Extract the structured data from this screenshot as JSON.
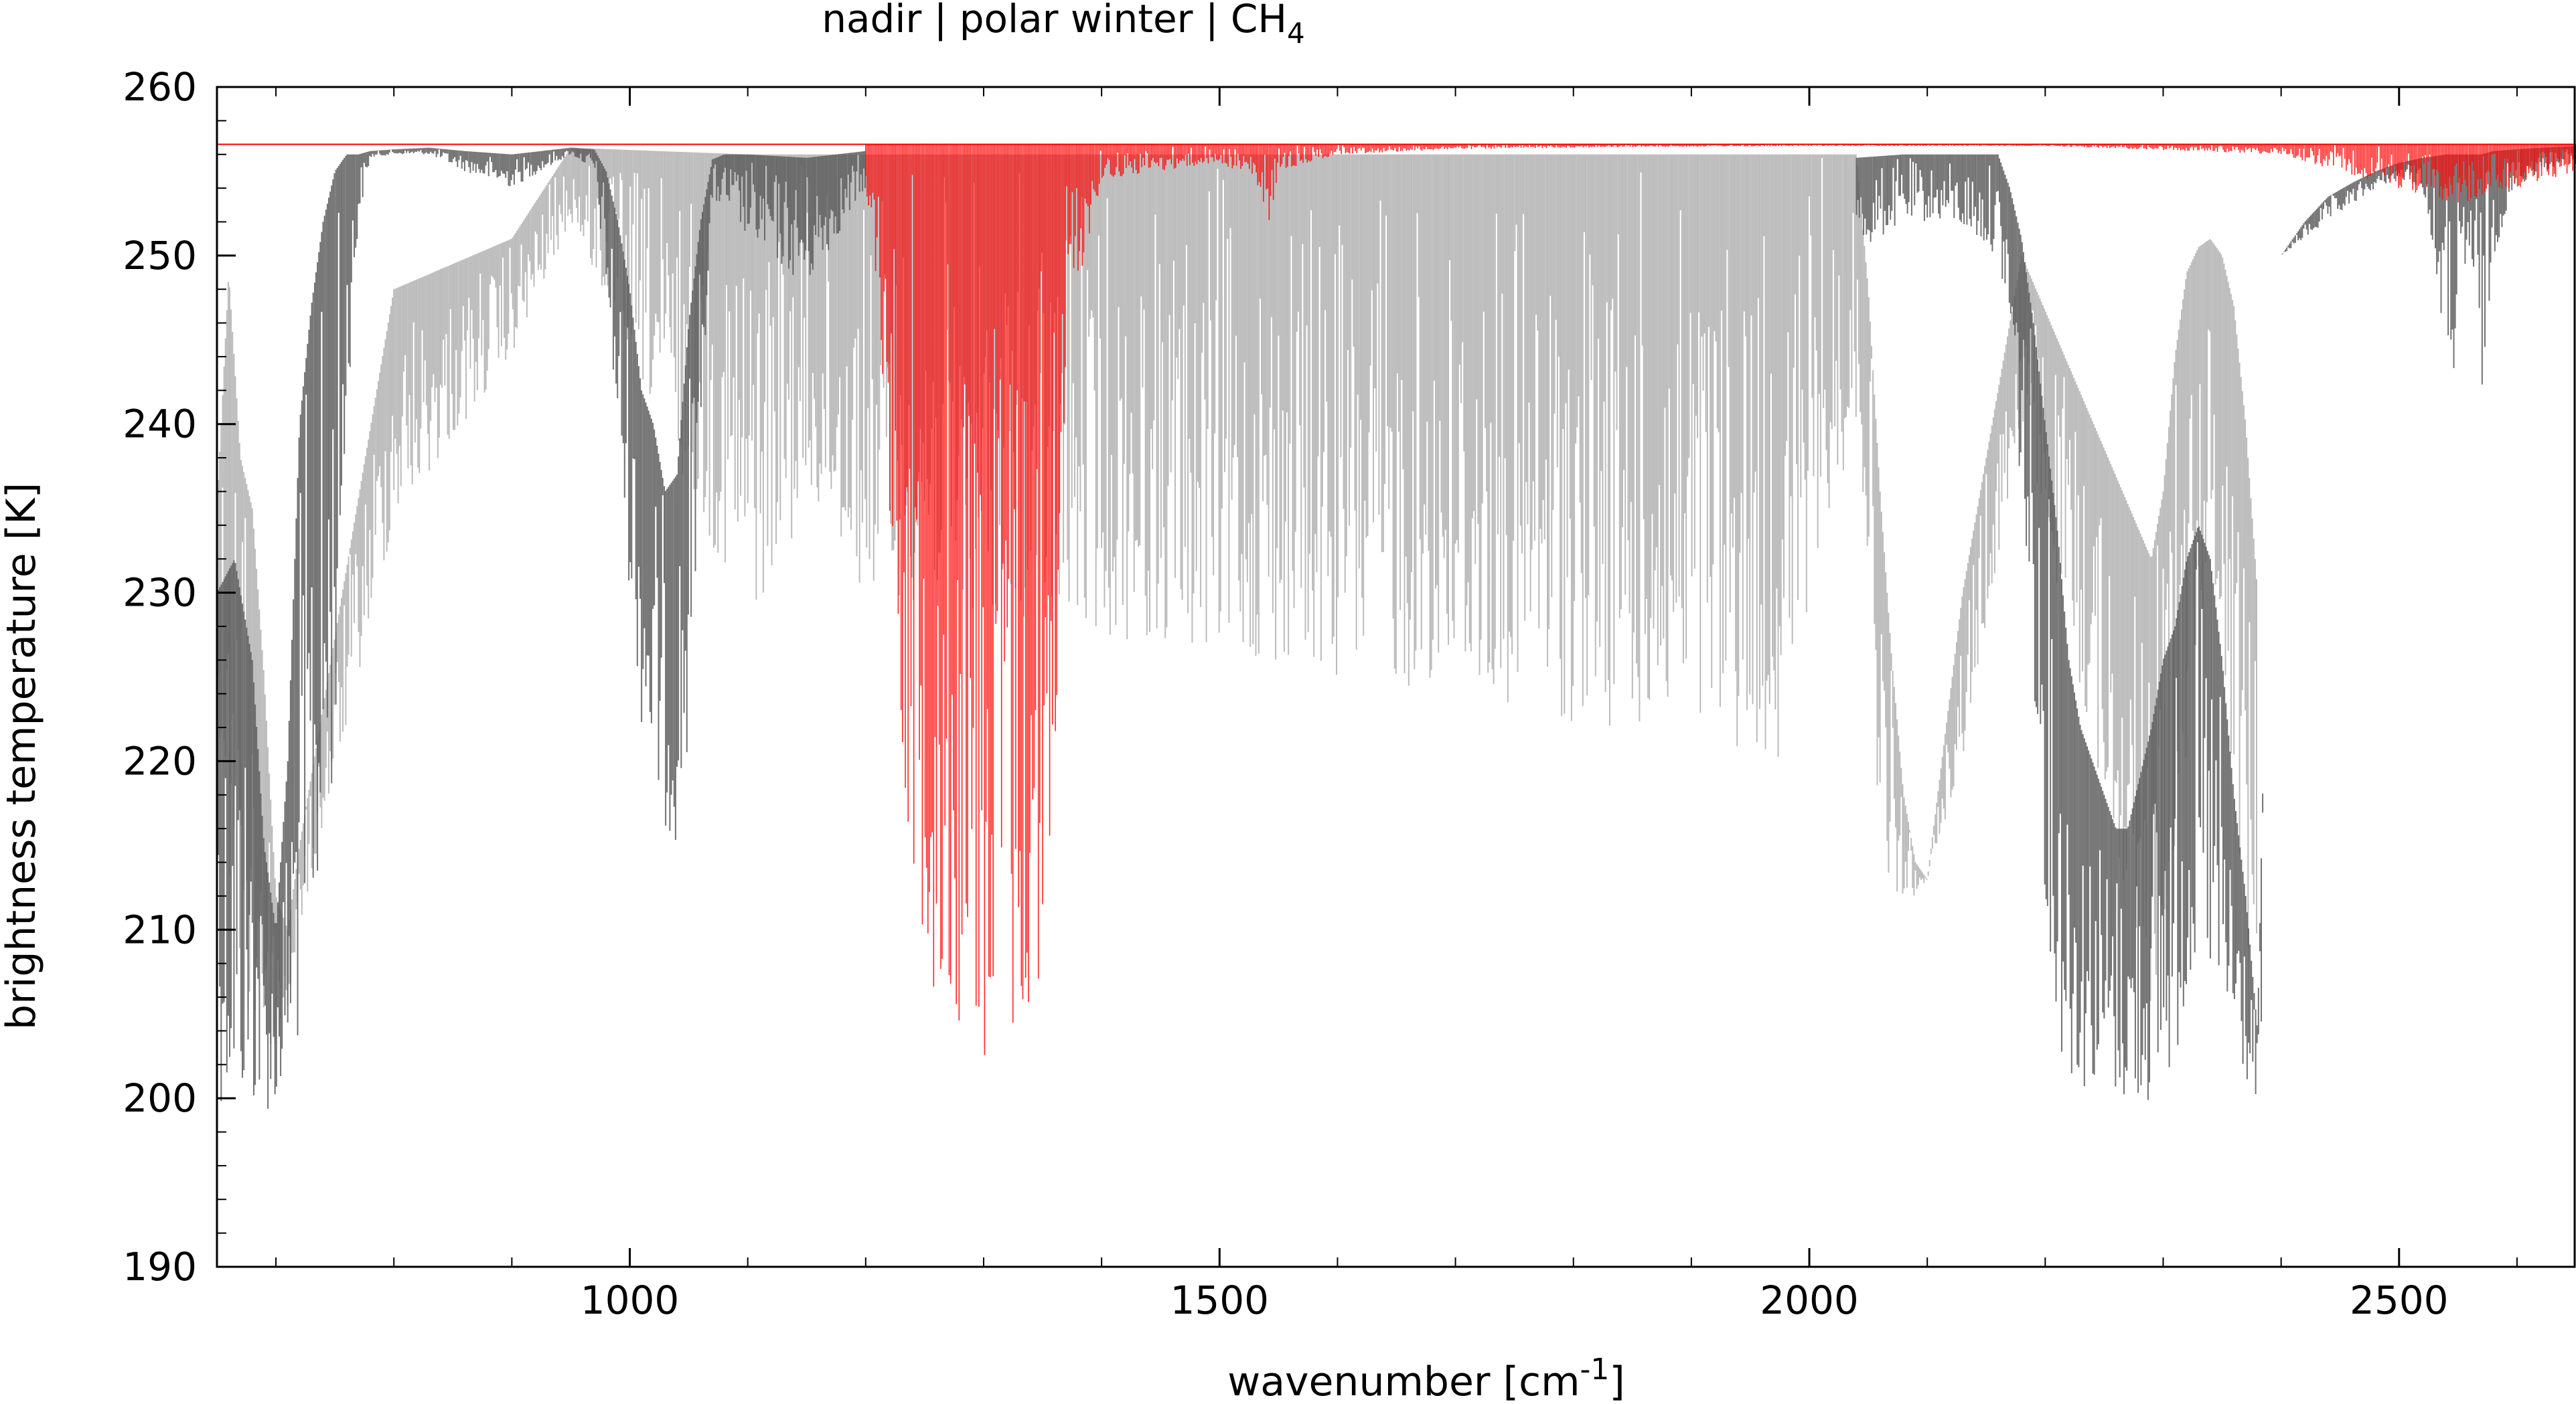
{
  "chart_data": {
    "type": "line",
    "title": {
      "prefix": "nadir | polar winter | CH",
      "subscript": "4"
    },
    "xlabel": {
      "prefix": "wavenumber [cm",
      "superscript": "-1",
      "suffix": "]"
    },
    "ylabel": "brightness temperature [K]",
    "xlim": [
      650,
      2650
    ],
    "ylim": [
      190,
      260
    ],
    "x_ticks": [
      1000,
      1500,
      2000,
      2500
    ],
    "x_tick_labels": [
      "1000",
      "1500",
      "2000",
      "2500"
    ],
    "y_ticks": [
      190,
      200,
      210,
      220,
      230,
      240,
      250,
      260
    ],
    "y_tick_labels": [
      "190",
      "200",
      "210",
      "220",
      "230",
      "240",
      "250",
      "260"
    ],
    "grid": false,
    "colors": {
      "dark": "#595959",
      "light": "#b4b4b4",
      "ch4": "#ff0000"
    },
    "series": [
      {
        "id": "total-dark",
        "color": "#595959",
        "x": [
          650,
          665,
          680,
          690,
          700,
          710,
          720,
          730,
          740,
          750,
          760,
          770,
          780,
          800,
          830,
          860,
          900,
          950,
          970,
          980,
          990,
          1000,
          1010,
          1020,
          1030,
          1040,
          1050,
          1060,
          1070,
          1080,
          1100,
          1150,
          1200
        ],
        "top": [
          230,
          232,
          226,
          215,
          210,
          220,
          240,
          247,
          252,
          255,
          256,
          256,
          256.2,
          256.3,
          256.4,
          256.2,
          256,
          256.4,
          256.3,
          255,
          252,
          248,
          242,
          240,
          236,
          237,
          246,
          252,
          255.7,
          256,
          256,
          255.8,
          256.2
        ],
        "bottom": [
          200,
          199,
          199,
          199,
          199.5,
          201,
          203,
          208,
          212,
          220,
          240,
          252,
          255.8,
          256,
          256,
          255,
          254,
          256,
          255,
          248,
          238,
          230,
          222,
          218,
          216,
          215,
          220,
          240,
          253,
          253,
          251,
          248,
          254
        ]
      },
      {
        "id": "total-dark-2",
        "color": "#595959",
        "x": [
          2040,
          2080,
          2120,
          2160,
          2170,
          2180,
          2190,
          2200,
          2210,
          2220,
          2230,
          2240,
          2250,
          2260,
          2270,
          2280,
          2290,
          2300,
          2310,
          2320,
          2330,
          2340,
          2350,
          2360,
          2370,
          2375,
          2380,
          2385
        ],
        "top": [
          255.8,
          256,
          256,
          256,
          254,
          251,
          246,
          240,
          234,
          226,
          222,
          220,
          218,
          216,
          216,
          219,
          222,
          226,
          228,
          232,
          234,
          232,
          226,
          218,
          212,
          208,
          204,
          220
        ],
        "bottom": [
          250,
          252,
          252,
          250,
          245,
          235,
          225,
          212,
          203,
          201,
          200.5,
          200.5,
          200.5,
          200,
          199.5,
          199.5,
          199.5,
          200,
          202,
          205,
          208,
          206,
          203,
          202,
          201,
          200,
          200,
          206
        ]
      },
      {
        "id": "total-dark-3",
        "color": "#595959",
        "x": [
          2400,
          2420,
          2440,
          2460,
          2480,
          2500,
          2520,
          2540,
          2550,
          2560,
          2570,
          2580,
          2600,
          2620,
          2650
        ],
        "top": [
          250,
          252,
          253.5,
          254.3,
          255,
          255.5,
          255.8,
          256,
          256,
          256,
          256,
          256.2,
          256.3,
          256.4,
          256.5
        ],
        "bottom": [
          250,
          251,
          252,
          253,
          254,
          254.5,
          254,
          244,
          242,
          250,
          241,
          250,
          254,
          255,
          255.5
        ]
      },
      {
        "id": "total-light",
        "color": "#b4b4b4",
        "x": [
          650,
          660,
          670,
          680,
          690,
          700,
          710,
          720,
          800,
          900,
          950,
          1100,
          1150,
          1200,
          1980,
          2000,
          2040,
          2050,
          2060,
          2070,
          2080,
          2090,
          2100,
          2130,
          2180,
          2290,
          2300,
          2310,
          2320,
          2330,
          2340,
          2350,
          2360,
          2370,
          2380
        ],
        "top": [
          235,
          249,
          238,
          235,
          225,
          212,
          210,
          215,
          248,
          251,
          256.4,
          256,
          256,
          256,
          256,
          256,
          256,
          248,
          236,
          226,
          218,
          214,
          213,
          230,
          250,
          232,
          236,
          244,
          249,
          250.5,
          251,
          250,
          247,
          240,
          230
        ],
        "bottom": [
          220,
          212,
          205,
          203,
          202,
          203,
          205,
          210,
          234,
          244,
          252,
          228,
          235,
          230,
          220,
          230,
          240,
          232,
          214,
          212,
          212,
          212,
          213,
          220,
          240,
          205,
          210,
          215,
          220,
          228,
          230,
          226,
          218,
          210,
          205
        ]
      },
      {
        "id": "ch4-contribution",
        "color": "#ff0000",
        "x": [
          1200,
          1210,
          1220,
          1230,
          1240,
          1250,
          1260,
          1270,
          1280,
          1290,
          1300,
          1305,
          1310,
          1320,
          1330,
          1340,
          1350,
          1360,
          1370,
          1400,
          1500,
          1530,
          1540,
          1550,
          1600,
          1700,
          1800,
          2000,
          2200,
          2400,
          2500,
          2550,
          2600,
          2650
        ],
        "top": [
          256.6,
          256.6,
          256.6,
          256.6,
          256.6,
          256.6,
          256.6,
          256.6,
          256.6,
          256.6,
          256.6,
          256.6,
          256.6,
          256.6,
          256.6,
          256.6,
          256.6,
          256.6,
          256.6,
          256.6,
          256.6,
          256.6,
          256.6,
          256.6,
          256.6,
          256.6,
          256.6,
          256.6,
          256.6,
          256.6,
          256.6,
          256.6,
          256.6,
          256.6
        ],
        "bottom": [
          254,
          248,
          235,
          222,
          211,
          210,
          205,
          203,
          204,
          203,
          202,
          200,
          204,
          203,
          202.5,
          203,
          206,
          215,
          245,
          254.5,
          255.5,
          254.5,
          251,
          255,
          256,
          256.3,
          256.4,
          256.5,
          256.5,
          256,
          254,
          253,
          254,
          255
        ]
      }
    ]
  }
}
